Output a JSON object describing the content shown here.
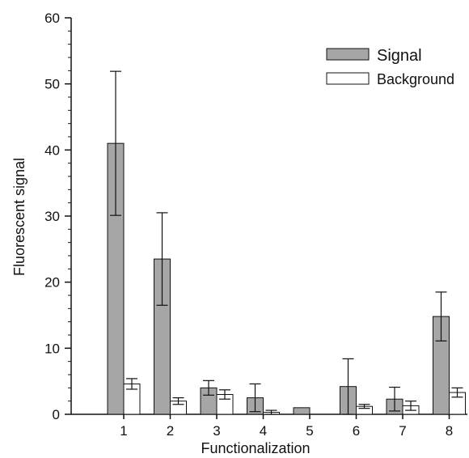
{
  "chart_data": {
    "type": "bar",
    "xlabel": "Functionalization",
    "ylabel": "Fluorescent signal",
    "categories": [
      "1",
      "2",
      "3",
      "4",
      "5",
      "6",
      "7",
      "8"
    ],
    "ylim": [
      0,
      60
    ],
    "yticks": [
      "0",
      "10",
      "20",
      "30",
      "40",
      "50",
      "60"
    ],
    "grid": false,
    "legend_position": "top-right",
    "series": [
      {
        "name": "Signal",
        "color": "#a6a6a6",
        "values": [
          41.0,
          23.5,
          4.0,
          2.5,
          1.0,
          4.2,
          2.3,
          14.8
        ],
        "errors": [
          10.9,
          7.0,
          1.1,
          2.1,
          null,
          4.2,
          1.8,
          3.7
        ]
      },
      {
        "name": "Background",
        "color": "#ffffff",
        "values": [
          4.6,
          2.0,
          3.0,
          0.3,
          0.0,
          1.2,
          1.3,
          3.3
        ],
        "errors": [
          0.8,
          0.5,
          0.7,
          0.3,
          null,
          0.3,
          0.7,
          0.7
        ]
      }
    ]
  }
}
